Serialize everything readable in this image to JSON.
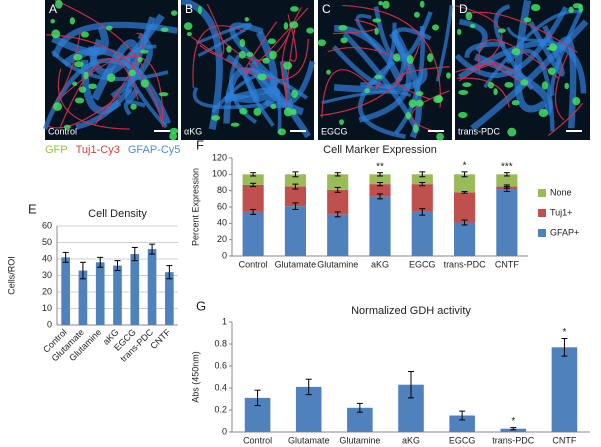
{
  "images": [
    {
      "label": "A",
      "caption": "Control"
    },
    {
      "label": "B",
      "caption": "αKG"
    },
    {
      "label": "C",
      "caption": "EGCG"
    },
    {
      "label": "D",
      "caption": "trans-PDC"
    }
  ],
  "stain_legend": [
    {
      "name": "GFP",
      "color": "#8fc63f"
    },
    {
      "name": "Tuj1-Cy3",
      "color": "#d9413a"
    },
    {
      "name": "GFAP-Cy5",
      "color": "#4a8fd0"
    }
  ],
  "chart_data": [
    {
      "type": "bar",
      "panel": "E",
      "title": "Cell Density",
      "y_label": "Cells/ROI",
      "categories": [
        "Control",
        "Glutamate",
        "Glutamine",
        "aKG",
        "EGCG",
        "trans-PDC",
        "CNTF"
      ],
      "values": [
        41,
        33,
        38,
        36,
        43,
        46,
        32
      ],
      "errors": [
        3,
        5,
        3,
        3,
        4,
        3,
        4
      ],
      "color": "#4f81bd",
      "ylim": [
        0,
        60
      ],
      "yticks": [
        0,
        10,
        20,
        30,
        40,
        50,
        60
      ],
      "grid": true,
      "x_label_rotation": -45
    },
    {
      "type": "stacked_bar",
      "panel": "F",
      "title": "Cell Marker Expression",
      "y_label": "Percent Expression",
      "categories": [
        "Control",
        "Glutamate",
        "Glutamine",
        "aKG",
        "EGCG",
        "trans-PDC",
        "CNTF"
      ],
      "series": [
        {
          "name": "GFAP+",
          "color": "#4f81bd",
          "values": [
            54,
            61,
            51,
            73,
            54,
            41,
            82
          ],
          "errors": [
            3,
            4,
            3,
            3,
            4,
            3,
            3
          ]
        },
        {
          "name": "Tuj1+",
          "color": "#c0504d",
          "values": [
            33,
            24,
            30,
            15,
            34,
            37,
            3
          ],
          "errors": [
            2,
            3,
            3,
            2,
            2,
            1,
            2
          ]
        },
        {
          "name": "None",
          "color": "#9bbb59",
          "values": [
            13,
            15,
            19,
            12,
            12,
            22,
            15
          ],
          "errors": [
            2,
            3,
            2,
            2,
            3,
            3,
            2
          ]
        }
      ],
      "annotations": [
        null,
        null,
        null,
        "**",
        null,
        "*",
        "***"
      ],
      "ylim": [
        0,
        120
      ],
      "yticks": [
        0,
        20,
        40,
        60,
        80,
        100,
        120
      ],
      "grid": false,
      "legend": "right"
    },
    {
      "type": "bar",
      "panel": "G",
      "title": "Normalized GDH activity",
      "y_label": "Abs (450nm)",
      "categories": [
        "Control",
        "Glutamate",
        "Glutamine",
        "aKG",
        "EGCG",
        "trans-PDC",
        "CNTF"
      ],
      "values": [
        0.31,
        0.41,
        0.22,
        0.43,
        0.15,
        0.03,
        0.77
      ],
      "errors": [
        0.07,
        0.07,
        0.04,
        0.12,
        0.04,
        0.01,
        0.08
      ],
      "color": "#4f81bd",
      "annotations": [
        null,
        null,
        null,
        null,
        null,
        "*",
        "*"
      ],
      "ylim": [
        0,
        1
      ],
      "yticks": [
        0,
        0.2,
        0.4,
        0.6,
        0.8,
        1
      ],
      "grid": false,
      "x_label_rotation": 0
    }
  ]
}
